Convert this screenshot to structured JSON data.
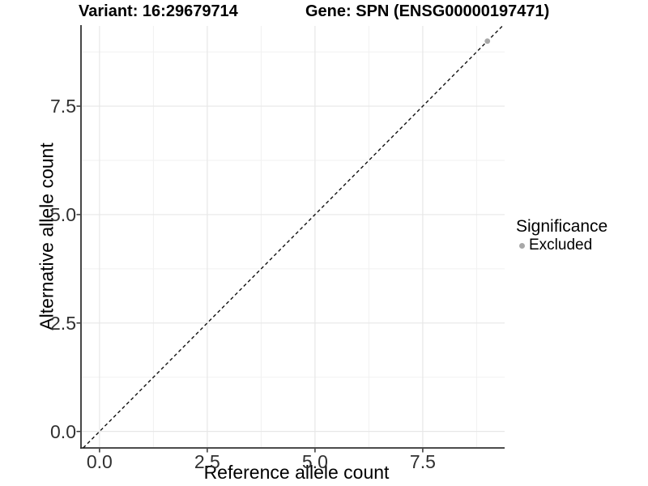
{
  "title": {
    "variant": "Variant: 16:29679714",
    "gene": "Gene: SPN (ENSG00000197471)"
  },
  "x_axis": {
    "label": "Reference allele count",
    "tick_labels": [
      "0.0",
      "2.5",
      "5.0",
      "7.5"
    ]
  },
  "y_axis": {
    "label": "Alternative allele count",
    "tick_labels": [
      "0.0",
      "2.5",
      "5.0",
      "7.5"
    ]
  },
  "legend": {
    "title": "Significance",
    "entries": [
      {
        "label": "Excluded",
        "color": "#a8a8a8"
      }
    ]
  },
  "chart_data": {
    "type": "scatter",
    "title": "Variant: 16:29679714   Gene: SPN (ENSG00000197471)",
    "xlabel": "Reference allele count",
    "ylabel": "Alternative allele count",
    "xlim": [
      -0.43,
      9.4
    ],
    "ylim": [
      -0.38,
      9.35
    ],
    "x_ticks": [
      0,
      2.5,
      5,
      7.5
    ],
    "y_ticks": [
      0,
      2.5,
      5,
      7.5
    ],
    "x_minor_ticks": [
      1.25,
      3.75,
      6.25,
      8.75
    ],
    "y_minor_ticks": [
      1.25,
      3.75,
      6.25,
      8.75
    ],
    "grid": true,
    "legend_position": "right",
    "series": [
      {
        "name": "Excluded",
        "color": "#a8a8a8",
        "points": [
          [
            9,
            9
          ]
        ]
      }
    ],
    "reference_line": {
      "type": "identity",
      "slope": 1,
      "intercept": 0,
      "style": "dashed",
      "color": "#111111"
    }
  },
  "colors": {
    "background": "#ffffff",
    "grid_major": "#e7e7e7",
    "grid_minor": "#f1f1f1",
    "axis_line": "#333333",
    "tick_mark": "#333333",
    "tick_text": "#303030",
    "point": "#a8a8a8",
    "dash_line": "#111111"
  }
}
